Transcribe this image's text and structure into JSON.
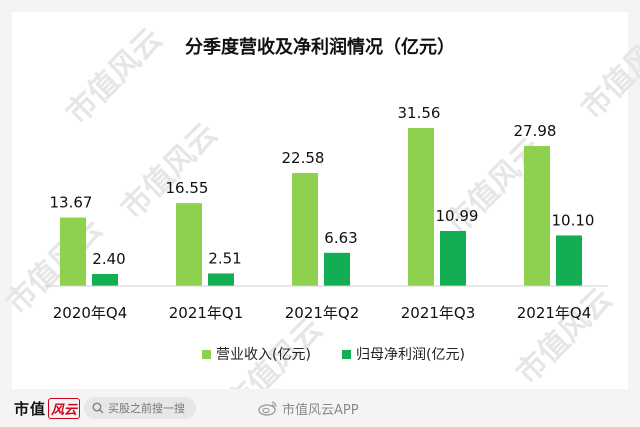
{
  "chart_data": {
    "type": "bar",
    "title": "分季度营收及净利润情况（亿元）",
    "categories": [
      "2020年Q4",
      "2021年Q1",
      "2021年Q2",
      "2021年Q3",
      "2021年Q4"
    ],
    "series": [
      {
        "name": "营业收入(亿元)",
        "values": [
          13.67,
          16.55,
          22.58,
          31.56,
          27.98
        ],
        "labels": [
          "13.67",
          "16.55",
          "22.58",
          "31.56",
          "27.98"
        ],
        "color": "#8dd14f"
      },
      {
        "name": "归母净利润(亿元)",
        "values": [
          2.4,
          2.51,
          6.63,
          10.99,
          10.1
        ],
        "labels": [
          "2.40",
          "2.51",
          "6.63",
          "10.99",
          "10.10"
        ],
        "color": "#13ad53"
      }
    ],
    "ylim": [
      0,
      31.56
    ],
    "grid": false,
    "legend": "bottom"
  },
  "watermark": "市值风云",
  "footer": {
    "logo_a": "市值",
    "logo_b": "风云",
    "search_icon": "search-icon",
    "search_text": "买股之前搜一搜",
    "weibo_icon": "weibo-icon",
    "account": "市值风云APP"
  }
}
